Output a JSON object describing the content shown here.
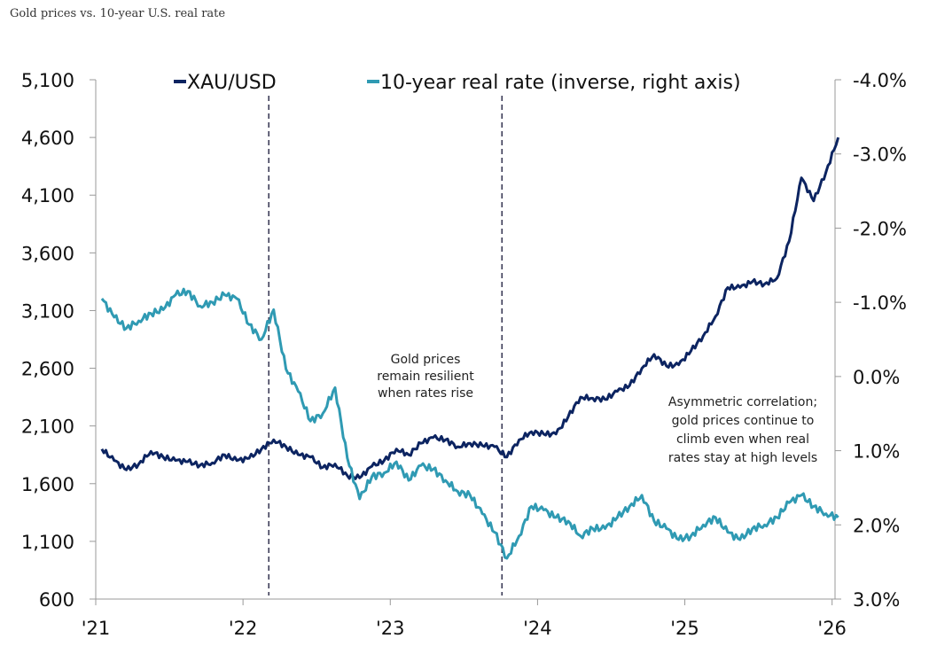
{
  "chart_data": {
    "type": "line",
    "title": "Gold prices vs. 10-year U.S. real rate",
    "x_tick_labels": [
      "'21",
      "'22",
      "'23",
      "'24",
      "'25",
      "'26"
    ],
    "x_ticks": [
      2021,
      2022,
      2023,
      2024,
      2025,
      2026
    ],
    "left_axis": {
      "range": [
        600,
        5100
      ],
      "ticks": [
        600,
        1100,
        1600,
        2100,
        2600,
        3100,
        3600,
        4100,
        4600,
        5100
      ],
      "tick_labels": [
        "600",
        "1,100",
        "1,600",
        "2,100",
        "2,600",
        "3,100",
        "3,600",
        "4,100",
        "4,600",
        "5,100"
      ]
    },
    "right_axis": {
      "range": [
        -4.0,
        3.0
      ],
      "inverted": true,
      "ticks": [
        -4,
        -3,
        -2,
        -1,
        0,
        1,
        2,
        3
      ],
      "tick_labels": [
        "-4.0%",
        "-3.0%",
        "-2.0%",
        "-1.0%",
        "0.0%",
        "1.0%",
        "2.0%",
        "3.0%"
      ]
    },
    "legend_placement": "top",
    "grid": false,
    "series": [
      {
        "name": "XAU/USD",
        "axis": "left",
        "color": "#0c2461",
        "x": [
          "2021-01",
          "2021-02",
          "2021-03",
          "2021-04",
          "2021-05",
          "2021-06",
          "2021-07",
          "2021-08",
          "2021-09",
          "2021-10",
          "2021-11",
          "2021-12",
          "2022-01",
          "2022-02",
          "2022-03",
          "2022-04",
          "2022-05",
          "2022-06",
          "2022-07",
          "2022-08",
          "2022-09",
          "2022-10",
          "2022-11",
          "2022-12",
          "2023-01",
          "2023-02",
          "2023-03",
          "2023-04",
          "2023-05",
          "2023-06",
          "2023-07",
          "2023-08",
          "2023-09",
          "2023-10",
          "2023-11",
          "2023-12",
          "2024-01",
          "2024-02",
          "2024-03",
          "2024-04",
          "2024-05",
          "2024-06",
          "2024-07",
          "2024-08",
          "2024-09",
          "2024-10",
          "2024-11",
          "2024-12",
          "2025-01",
          "2025-02",
          "2025-03",
          "2025-04",
          "2025-05",
          "2025-06",
          "2025-07",
          "2025-08",
          "2025-09",
          "2025-10",
          "2025-11",
          "2025-12",
          "2026-01"
        ],
        "y": [
          1900,
          1800,
          1720,
          1770,
          1880,
          1830,
          1800,
          1790,
          1760,
          1780,
          1850,
          1800,
          1820,
          1900,
          1980,
          1920,
          1850,
          1830,
          1740,
          1770,
          1670,
          1650,
          1750,
          1800,
          1900,
          1850,
          1950,
          2000,
          1980,
          1920,
          1950,
          1930,
          1920,
          1830,
          1980,
          2050,
          2030,
          2030,
          2180,
          2350,
          2340,
          2330,
          2400,
          2450,
          2600,
          2720,
          2620,
          2630,
          2750,
          2880,
          3050,
          3300,
          3300,
          3350,
          3330,
          3380,
          3700,
          4250,
          4050,
          4300,
          4600
        ]
      },
      {
        "name": "10-year real rate (inverse, right axis)",
        "axis": "right",
        "color": "#2f9ab3",
        "x": [
          "2021-01",
          "2021-02",
          "2021-03",
          "2021-04",
          "2021-05",
          "2021-06",
          "2021-07",
          "2021-08",
          "2021-09",
          "2021-10",
          "2021-11",
          "2021-12",
          "2022-01",
          "2022-02",
          "2022-03",
          "2022-04",
          "2022-05",
          "2022-06",
          "2022-07",
          "2022-08",
          "2022-09",
          "2022-10",
          "2022-11",
          "2022-12",
          "2023-01",
          "2023-02",
          "2023-03",
          "2023-04",
          "2023-05",
          "2023-06",
          "2023-07",
          "2023-08",
          "2023-09",
          "2023-10",
          "2023-11",
          "2023-12",
          "2024-01",
          "2024-02",
          "2024-03",
          "2024-04",
          "2024-05",
          "2024-06",
          "2024-07",
          "2024-08",
          "2024-09",
          "2024-10",
          "2024-11",
          "2024-12",
          "2025-01",
          "2025-02",
          "2025-03",
          "2025-04",
          "2025-05",
          "2025-06",
          "2025-07",
          "2025-08",
          "2025-09",
          "2025-10",
          "2025-11",
          "2025-12",
          "2026-01"
        ],
        "y": [
          -1.05,
          -0.8,
          -0.65,
          -0.75,
          -0.85,
          -0.9,
          -1.1,
          -1.15,
          -0.95,
          -1.0,
          -1.1,
          -1.05,
          -0.7,
          -0.5,
          -0.9,
          -0.1,
          0.2,
          0.6,
          0.5,
          0.15,
          1.1,
          1.65,
          1.35,
          1.3,
          1.15,
          1.4,
          1.2,
          1.25,
          1.4,
          1.55,
          1.6,
          1.85,
          2.1,
          2.45,
          2.15,
          1.75,
          1.8,
          1.9,
          1.95,
          2.15,
          2.05,
          2.05,
          1.9,
          1.75,
          1.6,
          1.95,
          2.05,
          2.2,
          2.15,
          2.0,
          1.9,
          2.1,
          2.2,
          2.05,
          2.0,
          1.9,
          1.7,
          1.6,
          1.75,
          1.85,
          1.9
        ]
      }
    ],
    "vlines": [
      "2022-03",
      "2023-10"
    ],
    "annotations": [
      {
        "lines": [
          "Gold prices",
          "remain resilient",
          "when rates rise"
        ]
      },
      {
        "lines": [
          "Asymmetric correlation;",
          "gold prices continue to",
          "climb even when real",
          "rates stay at high levels"
        ]
      }
    ]
  }
}
